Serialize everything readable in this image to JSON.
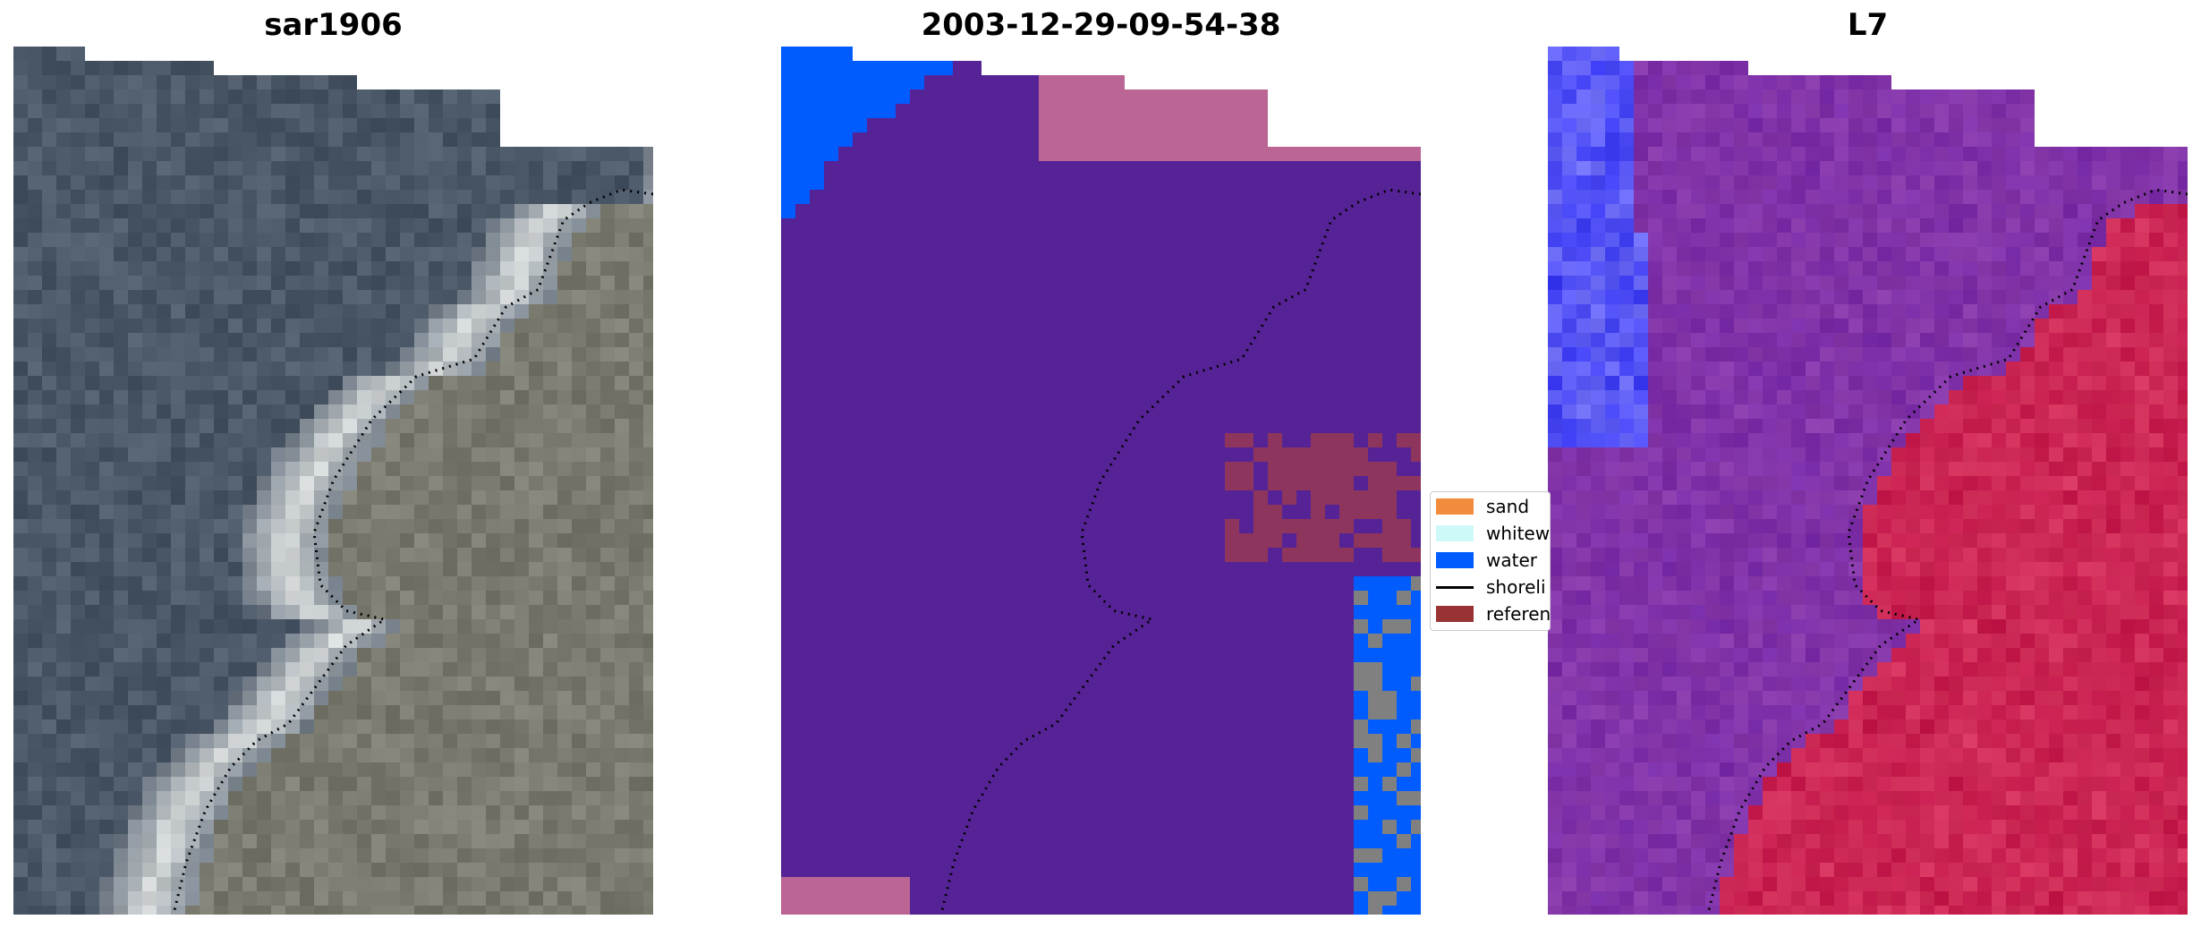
{
  "panels": [
    {
      "title": "sar1906",
      "kind": "rgb"
    },
    {
      "title": "2003-12-29-09-54-38",
      "kind": "classification"
    },
    {
      "title": "L7",
      "kind": "index"
    }
  ],
  "legend": {
    "items": [
      {
        "label": "sand",
        "color": "#f28c3c",
        "type": "patch"
      },
      {
        "label": "whitew",
        "color": "#cdf9f9",
        "type": "patch"
      },
      {
        "label": "water",
        "color": "#005cff",
        "type": "patch"
      },
      {
        "label": "shoreli",
        "color": "#000000",
        "type": "line"
      },
      {
        "label": "referen",
        "color": "#993333",
        "type": "patch"
      }
    ]
  },
  "colors": {
    "rgb_water": "#4b5868",
    "rgb_land": "#7a7a6e",
    "rgb_whitewater": "#d8dcdc",
    "class_other": "#562396",
    "class_water": "#005cff",
    "class_reference": "#8e355e",
    "class_reference_light": "#ba6594",
    "index_low": "#3a39f2",
    "index_mid": "#7a2da8",
    "index_high": "#c4194b",
    "shoreline": "#000000"
  }
}
